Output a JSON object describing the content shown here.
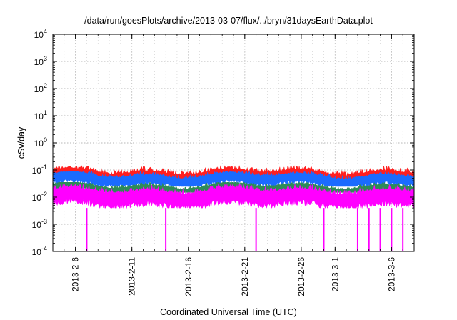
{
  "chart_data": {
    "type": "line",
    "title": "/data/run/goesPlots/archive/2013-03-07/flux/../bryn/31daysEarthData.plot",
    "xlabel": "Coordinated Universal Time (UTC)",
    "ylabel": "cSv/day",
    "yscale": "log",
    "ylim": [
      0.0001,
      10000
    ],
    "xlim": [
      "2013-02-04",
      "2013-03-08"
    ],
    "y_ticks": [
      {
        "base": "10",
        "exp": "-4",
        "value": 0.0001
      },
      {
        "base": "10",
        "exp": "-3",
        "value": 0.001
      },
      {
        "base": "10",
        "exp": "-2",
        "value": 0.01
      },
      {
        "base": "10",
        "exp": "-1",
        "value": 0.1
      },
      {
        "base": "10",
        "exp": "0",
        "value": 1
      },
      {
        "base": "10",
        "exp": "1",
        "value": 10
      },
      {
        "base": "10",
        "exp": "2",
        "value": 100
      },
      {
        "base": "10",
        "exp": "3",
        "value": 1000
      },
      {
        "base": "10",
        "exp": "4",
        "value": 10000
      }
    ],
    "x_ticks": [
      {
        "label": "2013-2-6",
        "date": "2013-02-06"
      },
      {
        "label": "2013-2-11",
        "date": "2013-02-11"
      },
      {
        "label": "2013-2-16",
        "date": "2013-02-16"
      },
      {
        "label": "2013-2-21",
        "date": "2013-02-21"
      },
      {
        "label": "2013-2-26",
        "date": "2013-02-26"
      },
      {
        "label": "2013-3-1",
        "date": "2013-03-01"
      },
      {
        "label": "2013-3-6",
        "date": "2013-03-06"
      }
    ],
    "grid": true,
    "series": [
      {
        "color": "#ff1f1f",
        "typical": 0.065,
        "min": 0.045,
        "max": 0.14
      },
      {
        "color": "#1a6bff",
        "typical": 0.05,
        "min": 0.025,
        "max": 0.09
      },
      {
        "color": "#2e8b57",
        "typical": 0.022,
        "min": 0.015,
        "max": 0.035
      },
      {
        "color": "#ff00ff",
        "typical": 0.012,
        "min": 0.004,
        "max": 0.03
      }
    ],
    "dropouts": [
      {
        "series": 3,
        "date": "2013-02-07",
        "y": 0.0001
      },
      {
        "series": 3,
        "date": "2013-02-14",
        "y": 0.0001
      },
      {
        "series": 3,
        "date": "2013-02-22",
        "y": 0.0001
      },
      {
        "series": 3,
        "date": "2013-02-28",
        "y": 0.0001
      },
      {
        "series": 3,
        "date": "2013-03-03",
        "y": 0.0001
      },
      {
        "series": 3,
        "date": "2013-03-04",
        "y": 0.0001
      },
      {
        "series": 3,
        "date": "2013-03-05",
        "y": 0.0001
      },
      {
        "series": 3,
        "date": "2013-03-06",
        "y": 0.0001
      },
      {
        "series": 3,
        "date": "2013-03-07",
        "y": 0.0001
      }
    ]
  }
}
